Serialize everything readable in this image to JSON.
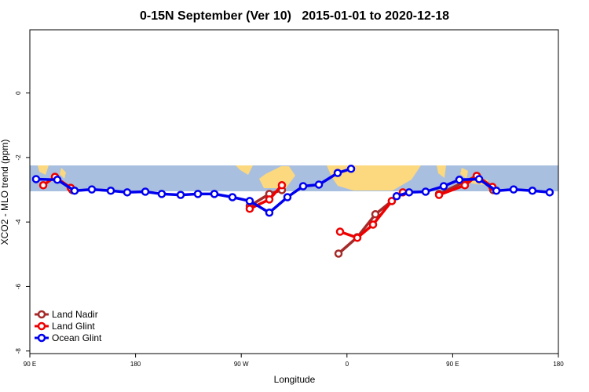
{
  "chart_data": {
    "type": "line",
    "title": "0-15N September (Ver 10)   2015-01-01 to 2020-12-18",
    "x_label": "Longitude",
    "y_label": "XCO2 - MLO trend (ppm)",
    "xlim": [
      90,
      540
    ],
    "ylim": [
      -8.08,
      1.96
    ],
    "xticks": [
      {
        "value": 90,
        "label": "90 E"
      },
      180,
      {
        "value": 270,
        "label": "90 W"
      },
      {
        "value": 360,
        "label": "0"
      },
      {
        "value": 450,
        "label": "90 E"
      },
      {
        "value": 540,
        "label": "180"
      }
    ],
    "yticks": [
      0,
      -2,
      -4,
      -6,
      -8
    ],
    "legend": "bottom-left",
    "series": [
      {
        "name": "Land Nadir",
        "color": "#a52a2a",
        "x": [
          111.4,
          126.1,
          null,
          277.2,
          293.9,
          304.6,
          null,
          352.8,
          368.8,
          384.2,
          398.2,
          null,
          438.4,
          470.5,
          484.5
        ],
        "values": [
          -2.6,
          -3.01,
          null,
          -3.5,
          -3.13,
          -3.01,
          null,
          -4.98,
          -4.47,
          -3.76,
          -3.35,
          null,
          -3.13,
          -2.57,
          -3.01
        ]
      },
      {
        "name": "Land Glint",
        "color": "#ee0000",
        "x": [
          101.4,
          111.4,
          124.8,
          null,
          277.2,
          293.9,
          304.6,
          null,
          354.1,
          368.8,
          382.2,
          398.2,
          407.6,
          null,
          438.4,
          460.4,
          470.5,
          483.8
        ],
        "values": [
          -2.86,
          -2.6,
          -2.94,
          null,
          -3.59,
          -3.3,
          -2.86,
          null,
          -4.3,
          -4.49,
          -4.08,
          -3.35,
          -3.08,
          null,
          -3.16,
          -2.86,
          -2.57,
          -2.91
        ]
      },
      {
        "name": "Ocean Glint",
        "color": "#0000ee",
        "x": [
          95.3,
          113.4,
          128.1,
          142.8,
          158.9,
          172.9,
          188.3,
          202.3,
          218.4,
          233.1,
          247.1,
          262.5,
          277.2,
          293.9,
          309.3,
          322.7,
          336.1,
          352.1,
          363.5,
          null,
          402.3,
          412.9,
          427,
          442.4,
          455.7,
          472.5,
          487.2,
          501.9,
          517.9,
          532.6
        ],
        "values": [
          -2.67,
          -2.69,
          -3.03,
          -2.99,
          -3.03,
          -3.08,
          -3.06,
          -3.13,
          -3.16,
          -3.13,
          -3.13,
          -3.23,
          -3.35,
          -3.71,
          -3.23,
          -2.89,
          -2.84,
          -2.48,
          -2.35,
          null,
          -3.2,
          -3.08,
          -3.06,
          -2.89,
          -2.69,
          -2.67,
          -3.03,
          -2.99,
          -3.03,
          -3.08
        ]
      }
    ]
  }
}
